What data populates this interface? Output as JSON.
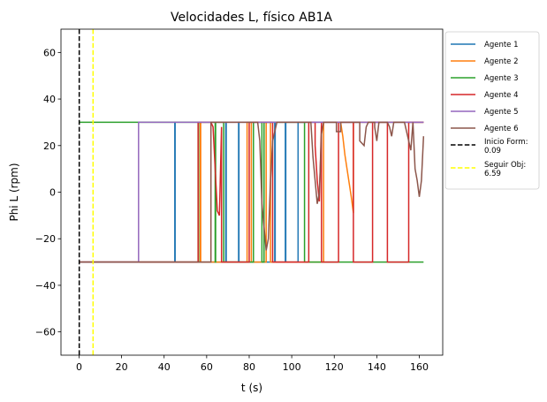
{
  "chart_data": {
    "type": "line",
    "title": "Velocidades L, físico AB1A",
    "xlabel": "t (s)",
    "ylabel": "Phi L (rpm)",
    "xlim": [
      -8.5,
      171
    ],
    "ylim": [
      -70,
      70
    ],
    "xticks": [
      0,
      20,
      40,
      60,
      80,
      100,
      120,
      140,
      160
    ],
    "yticks": [
      -60,
      -40,
      -20,
      0,
      20,
      40,
      60
    ],
    "grid": false,
    "legend_position": "outside-right",
    "series": [
      {
        "name": "Agente 1",
        "color": "#1f77b4",
        "points": [
          [
            0,
            -30
          ],
          [
            45,
            -30
          ],
          [
            45,
            30
          ],
          [
            45.2,
            30
          ],
          [
            45.2,
            -30
          ],
          [
            69,
            -30
          ],
          [
            69,
            30
          ],
          [
            69.2,
            30
          ],
          [
            69.2,
            -30
          ],
          [
            75,
            -30
          ],
          [
            75,
            30
          ],
          [
            75.2,
            30
          ],
          [
            75.2,
            -30
          ],
          [
            92,
            -30
          ],
          [
            92,
            30
          ],
          [
            92.2,
            30
          ],
          [
            92.2,
            -30
          ],
          [
            97,
            -30
          ],
          [
            97,
            30
          ],
          [
            97.2,
            30
          ],
          [
            97.2,
            -30
          ],
          [
            103,
            -30
          ],
          [
            103,
            30
          ],
          [
            162,
            30
          ]
        ]
      },
      {
        "name": "Agente 2",
        "color": "#ff7f0e",
        "points": [
          [
            0,
            -30
          ],
          [
            57,
            -30
          ],
          [
            57,
            30
          ],
          [
            57.2,
            30
          ],
          [
            57.2,
            -30
          ],
          [
            79,
            -30
          ],
          [
            79,
            30
          ],
          [
            81,
            30
          ],
          [
            81,
            -30
          ],
          [
            88,
            -30
          ],
          [
            88,
            30
          ],
          [
            90,
            30
          ],
          [
            90,
            -30
          ],
          [
            115,
            -30
          ],
          [
            115,
            30
          ],
          [
            123,
            30
          ],
          [
            124,
            24
          ],
          [
            125,
            16
          ],
          [
            126,
            10
          ],
          [
            127,
            4
          ],
          [
            128,
            -2
          ],
          [
            129,
            -9
          ],
          [
            129,
            30
          ],
          [
            162,
            30
          ]
        ]
      },
      {
        "name": "Agente 3",
        "color": "#2ca02c",
        "points": [
          [
            0,
            30
          ],
          [
            56,
            30
          ],
          [
            56,
            -30
          ],
          [
            56.2,
            -30
          ],
          [
            56.2,
            30
          ],
          [
            64,
            30
          ],
          [
            64,
            -30
          ],
          [
            64.2,
            -30
          ],
          [
            64.2,
            30
          ],
          [
            68,
            30
          ],
          [
            68,
            -30
          ],
          [
            82,
            -30
          ],
          [
            82,
            30
          ],
          [
            86,
            30
          ],
          [
            86,
            -30
          ],
          [
            87,
            -30
          ],
          [
            87,
            30
          ],
          [
            106,
            30
          ],
          [
            106,
            -30
          ],
          [
            162,
            -30
          ]
        ]
      },
      {
        "name": "Agente 4",
        "color": "#d62728",
        "points": [
          [
            0,
            -30
          ],
          [
            56,
            -30
          ],
          [
            56,
            30
          ],
          [
            62,
            30
          ],
          [
            63,
            28
          ],
          [
            64,
            10
          ],
          [
            65,
            -8
          ],
          [
            66,
            -10
          ],
          [
            67,
            28
          ],
          [
            67,
            -30
          ],
          [
            80,
            -30
          ],
          [
            80,
            30
          ],
          [
            91,
            30
          ],
          [
            91,
            -30
          ],
          [
            108,
            -30
          ],
          [
            108,
            30
          ],
          [
            111,
            30
          ],
          [
            111,
            20
          ],
          [
            112,
            5
          ],
          [
            113,
            -4
          ],
          [
            114,
            30
          ],
          [
            114,
            -30
          ],
          [
            122,
            -30
          ],
          [
            122,
            30
          ],
          [
            129,
            30
          ],
          [
            129,
            -30
          ],
          [
            138,
            -30
          ],
          [
            138,
            30
          ],
          [
            145,
            30
          ],
          [
            145,
            -30
          ],
          [
            155,
            -30
          ],
          [
            155,
            30
          ],
          [
            162,
            30
          ]
        ]
      },
      {
        "name": "Agente 5",
        "color": "#9467bd",
        "points": [
          [
            0,
            -30
          ],
          [
            28,
            -30
          ],
          [
            28,
            30
          ],
          [
            162,
            30
          ]
        ]
      },
      {
        "name": "Agente 6",
        "color": "#8c564b",
        "points": [
          [
            0,
            -30
          ],
          [
            62,
            -30
          ],
          [
            62,
            30
          ],
          [
            84,
            30
          ],
          [
            85,
            22
          ],
          [
            86,
            -5
          ],
          [
            87,
            -15
          ],
          [
            88,
            -25
          ],
          [
            89,
            -20
          ],
          [
            90,
            5
          ],
          [
            91,
            22
          ],
          [
            93,
            30
          ],
          [
            109,
            30
          ],
          [
            110,
            15
          ],
          [
            111,
            5
          ],
          [
            112,
            -5
          ],
          [
            113,
            0
          ],
          [
            114,
            25
          ],
          [
            115,
            30
          ],
          [
            121,
            30
          ],
          [
            121,
            26
          ],
          [
            123,
            26
          ],
          [
            123,
            30
          ],
          [
            132,
            30
          ],
          [
            132,
            22
          ],
          [
            134,
            20
          ],
          [
            135,
            28
          ],
          [
            136,
            30
          ],
          [
            139,
            30
          ],
          [
            139,
            28
          ],
          [
            140,
            22
          ],
          [
            141,
            30
          ],
          [
            145,
            30
          ],
          [
            146,
            28
          ],
          [
            147,
            24
          ],
          [
            148,
            30
          ],
          [
            153,
            30
          ],
          [
            154,
            26
          ],
          [
            155,
            22
          ],
          [
            156,
            18
          ],
          [
            157,
            30
          ],
          [
            158,
            10
          ],
          [
            159,
            5
          ],
          [
            160,
            -2
          ],
          [
            161,
            5
          ],
          [
            162,
            24
          ]
        ]
      },
      {
        "name": "Inicio Form: 0.09",
        "color": "#000000",
        "dashed": true,
        "vertical_x": 0.09
      },
      {
        "name": "Seguir Obj: 6.59",
        "color": "#ffff00",
        "dashed": true,
        "vertical_x": 6.59
      }
    ]
  }
}
